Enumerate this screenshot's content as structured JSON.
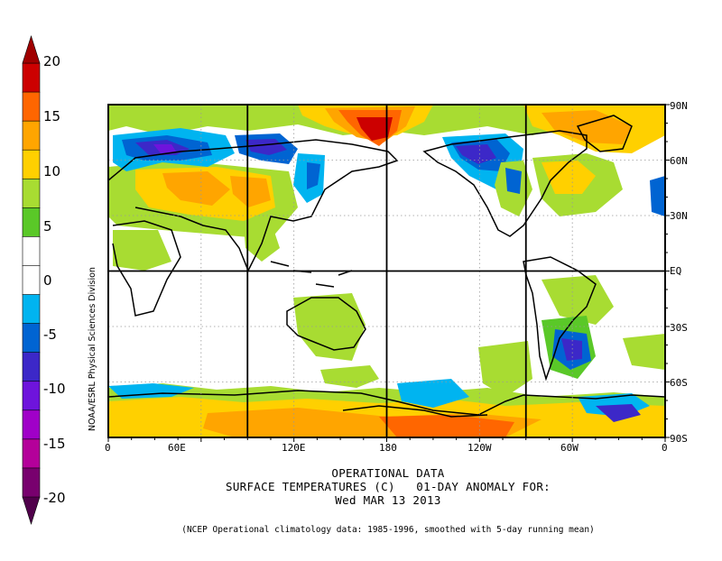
{
  "title": {
    "line1": "OPERATIONAL DATA",
    "line2": "SURFACE TEMPERATURES (C)   01-DAY ANOMALY FOR:",
    "line3": "Wed MAR 13 2013"
  },
  "footnote": "(NCEP Operational climatology data: 1985-1996, smoothed with 5-day running mean)",
  "credit": "NOAA/ESRL Physical Sciences Division",
  "colorbar": {
    "labels": [
      "20",
      "15",
      "10",
      "5",
      "0",
      "-5",
      "-10",
      "-15",
      "-20"
    ],
    "colors": [
      "#cc0000",
      "#ff6600",
      "#ffa500",
      "#ffd000",
      "#a8dc32",
      "#5ac828",
      "#ffffff",
      "#ffffff",
      "#00b4f0",
      "#0064d2",
      "#3c28c8",
      "#6e14dc",
      "#a000c8",
      "#b4009a",
      "#78006e"
    ],
    "tip_top_color": "#a00000",
    "tip_bottom_color": "#50004b"
  },
  "map": {
    "lon_labels": [
      "0",
      "60E",
      "120E",
      "180",
      "120W",
      "60W",
      "0"
    ],
    "lat_labels": [
      "90N",
      "60N",
      "30N",
      "EQ",
      "30S",
      "60S",
      "90S"
    ]
  }
}
